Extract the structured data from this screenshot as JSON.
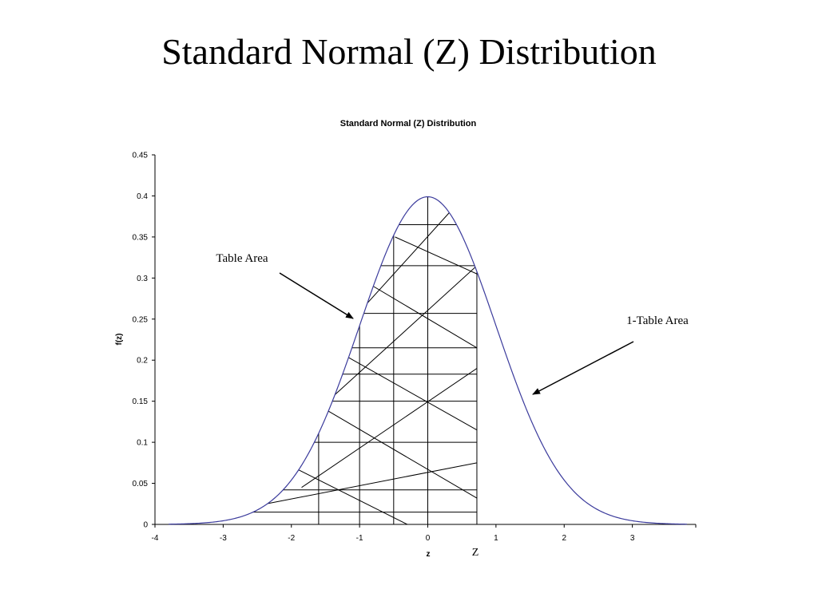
{
  "slide": {
    "title": "Standard Normal (Z) Distribution"
  },
  "chart_data": {
    "type": "line",
    "title": "Standard Normal (Z) Distribution",
    "xlabel": "z",
    "ylabel": "f(z)",
    "xlim": [
      -4,
      4
    ],
    "ylim": [
      0,
      0.45
    ],
    "x_ticks": [
      -4,
      -3,
      -2,
      -1,
      0,
      1,
      2,
      3
    ],
    "y_ticks": [
      0,
      0.05,
      0.1,
      0.15,
      0.2,
      0.25,
      0.3,
      0.35,
      0.4,
      0.45
    ],
    "x_tick_labels": [
      "-4",
      "-3",
      "-2",
      "-1",
      "0",
      "1",
      "2",
      "3"
    ],
    "y_tick_labels": [
      "0",
      "0.05",
      "0.1",
      "0.15",
      "0.2",
      "0.25",
      "0.3",
      "0.35",
      "0.4",
      "0.45"
    ],
    "series": [
      {
        "function": "standard normal pdf",
        "x_range": [
          -3.8,
          3.8
        ],
        "color": "#3b3b9c"
      }
    ],
    "shaded_region": {
      "from": -1.6,
      "to": 0.72,
      "style": "hatched"
    },
    "grid": false,
    "legend": "none",
    "annotations": [
      {
        "text": "Table Area",
        "points_to": "shaded region left of z"
      },
      {
        "text": "1-Table Area",
        "points_to": "right tail"
      },
      {
        "text": "Z",
        "position": "below x-axis near z = 0.7"
      }
    ]
  }
}
